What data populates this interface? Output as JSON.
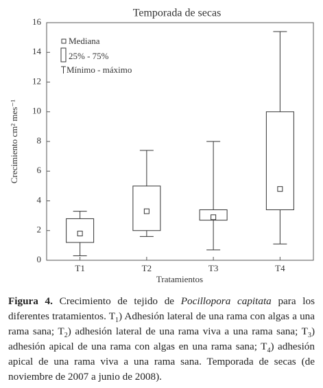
{
  "chart_data": {
    "type": "box",
    "title": "Temporada de secas",
    "xlabel": "Tratamientos",
    "ylabel": "Crecimiento cm² mes⁻¹",
    "categories": [
      "T1",
      "T2",
      "T3",
      "T4"
    ],
    "boxes": {
      "min": [
        0.3,
        1.6,
        0.7,
        1.1
      ],
      "q1": [
        1.2,
        2.0,
        2.7,
        3.4
      ],
      "median": [
        1.8,
        3.3,
        2.9,
        4.8
      ],
      "q3": [
        2.8,
        5.0,
        3.4,
        10.0
      ],
      "max": [
        3.3,
        7.4,
        8.0,
        15.4
      ]
    },
    "color": "#333333",
    "ylim": [
      0,
      16
    ],
    "yticks": [
      0,
      2,
      4,
      6,
      8,
      10,
      12,
      14,
      16
    ],
    "legend": [
      "Mediana",
      "25% - 75%",
      "Mínimo - máximo"
    ]
  },
  "caption": {
    "parts": [
      "Figura 4.",
      " Crecimiento de tejido de ",
      "Pocillopora capitata",
      " para los diferentes tratamientos. T",
      "1",
      ") Adhesión lateral de una rama con algas a una rama sana; T",
      "2",
      ") adhesión lateral de una rama viva a una rama sana; T",
      "3",
      ") adhesión apical de una rama con algas en una rama sana; T",
      "4",
      ") adhesión apical de una rama viva a una rama sana. Temporada de secas (de noviembre de 2007 a junio de 2008)."
    ]
  }
}
